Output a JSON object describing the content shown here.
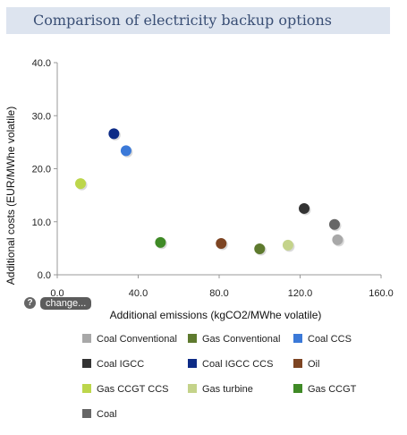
{
  "header": {
    "title": "Comparison of electricity backup options"
  },
  "controls": {
    "help_label": "?",
    "change_label": "change..."
  },
  "chart_data": {
    "type": "scatter",
    "xlabel": "Additional emissions (kgCO2/MWhe volatile)",
    "ylabel": "Additional costs (EUR/MWhe volatile)",
    "xlim": [
      0,
      160
    ],
    "ylim": [
      0,
      40
    ],
    "xticks": [
      "0.0",
      "40.0",
      "80.0",
      "120.0",
      "160.0"
    ],
    "yticks": [
      "0.0",
      "10.0",
      "20.0",
      "30.0",
      "40.0"
    ],
    "grid": false,
    "legend_position": "bottom",
    "series": [
      {
        "name": "Coal Conventional",
        "color": "#a8a8a8",
        "x": 138.5,
        "y": 6.6
      },
      {
        "name": "Gas Conventional",
        "color": "#5e7a2e",
        "x": 100,
        "y": 4.9
      },
      {
        "name": "Coal CCS",
        "color": "#3b79d8",
        "x": 34,
        "y": 23.4
      },
      {
        "name": "Coal IGCC",
        "color": "#333333",
        "x": 122,
        "y": 12.5
      },
      {
        "name": "Coal IGCC CCS",
        "color": "#0d2b86",
        "x": 28,
        "y": 26.6
      },
      {
        "name": "Oil",
        "color": "#7d4422",
        "x": 81,
        "y": 5.9
      },
      {
        "name": "Gas CCGT CCS",
        "color": "#bcd64b",
        "x": 11.5,
        "y": 17.2
      },
      {
        "name": "Gas turbine",
        "color": "#c4d38a",
        "x": 114,
        "y": 5.6
      },
      {
        "name": "Gas CCGT",
        "color": "#3f8a26",
        "x": 51,
        "y": 6.1
      },
      {
        "name": "Coal",
        "color": "#666666",
        "x": 137,
        "y": 9.5
      }
    ]
  }
}
